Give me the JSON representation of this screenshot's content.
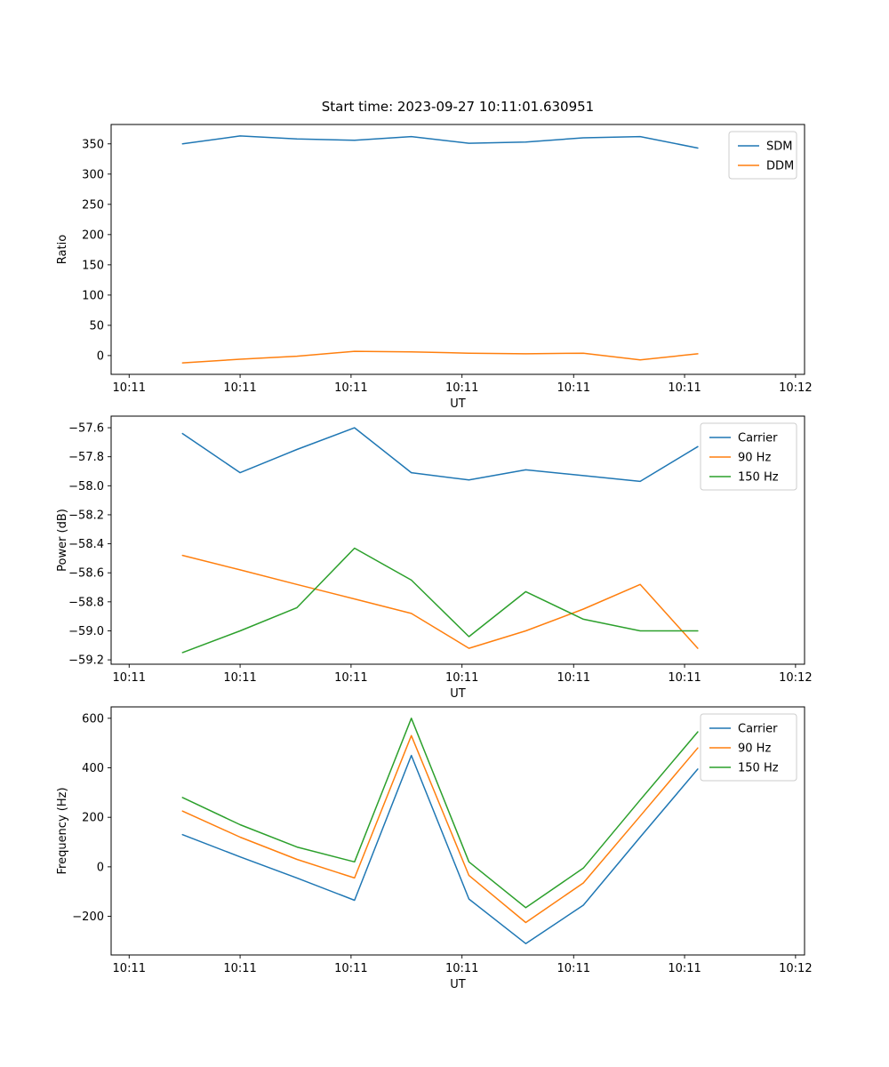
{
  "figure": {
    "background": "#ffffff",
    "frame_color": "#000000",
    "legend_border_color": "#cccccc"
  },
  "chart_data": [
    {
      "type": "line",
      "title": "Start time: 2023-09-27 10:11:01.630951",
      "xlabel": "UT",
      "ylabel": "Ratio",
      "ylim": [
        -31,
        382
      ],
      "yticks": [
        0,
        50,
        100,
        150,
        200,
        250,
        300,
        350
      ],
      "ytick_labels": [
        "0",
        "50",
        "100",
        "150",
        "200",
        "250",
        "300",
        "350"
      ],
      "xticks": {
        "positions": [
          0.026,
          0.186,
          0.346,
          0.506,
          0.667,
          0.827,
          0.987
        ],
        "labels": [
          "10:11",
          "10:11",
          "10:11",
          "10:11",
          "10:11",
          "10:11",
          "10:12"
        ]
      },
      "x": [
        0.103,
        0.186,
        0.268,
        0.351,
        0.433,
        0.516,
        0.598,
        0.681,
        0.763,
        0.846
      ],
      "legend_position": "upper right",
      "grid": false,
      "series": [
        {
          "name": "SDM",
          "color": "#1f77b4",
          "values": [
            350,
            363,
            358,
            356,
            362,
            351,
            353,
            360,
            362,
            343
          ]
        },
        {
          "name": "DDM",
          "color": "#ff7f0e",
          "values": [
            -12,
            -6,
            -1,
            7,
            6,
            4,
            3,
            4,
            -7,
            3
          ]
        }
      ]
    },
    {
      "type": "line",
      "title": "",
      "xlabel": "UT",
      "ylabel": "Power (dB)",
      "ylim": [
        -59.23,
        -57.52
      ],
      "yticks": [
        -59.2,
        -59.0,
        -58.8,
        -58.6,
        -58.4,
        -58.2,
        -58.0,
        -57.8,
        -57.6
      ],
      "ytick_labels": [
        "−59.2",
        "−59.0",
        "−58.8",
        "−58.6",
        "−58.4",
        "−58.2",
        "−58.0",
        "−57.8",
        "−57.6"
      ],
      "xticks": {
        "positions": [
          0.026,
          0.186,
          0.346,
          0.506,
          0.667,
          0.827,
          0.987
        ],
        "labels": [
          "10:11",
          "10:11",
          "10:11",
          "10:11",
          "10:11",
          "10:11",
          "10:12"
        ]
      },
      "x": [
        0.103,
        0.186,
        0.268,
        0.351,
        0.433,
        0.516,
        0.598,
        0.681,
        0.763,
        0.846
      ],
      "legend_position": "upper right",
      "grid": false,
      "series": [
        {
          "name": "Carrier",
          "color": "#1f77b4",
          "values": [
            -57.64,
            -57.91,
            -57.75,
            -57.6,
            -57.91,
            -57.96,
            -57.89,
            -57.93,
            -57.97,
            -57.73
          ]
        },
        {
          "name": "90 Hz",
          "color": "#ff7f0e",
          "values": [
            -58.48,
            -58.58,
            -58.68,
            -58.78,
            -58.88,
            -59.12,
            -59.0,
            -58.85,
            -58.68,
            -59.12
          ]
        },
        {
          "name": "150 Hz",
          "color": "#2ca02c",
          "values": [
            -59.15,
            -59.0,
            -58.84,
            -58.43,
            -58.65,
            -59.04,
            -58.73,
            -58.92,
            -59.0,
            -59.0
          ]
        }
      ]
    },
    {
      "type": "line",
      "title": "",
      "xlabel": "UT",
      "ylabel": "Frequency (Hz)",
      "ylim": [
        -356,
        646
      ],
      "yticks": [
        -200,
        0,
        200,
        400,
        600
      ],
      "ytick_labels": [
        "−200",
        "0",
        "200",
        "400",
        "600"
      ],
      "xticks": {
        "positions": [
          0.026,
          0.186,
          0.346,
          0.506,
          0.667,
          0.827,
          0.987
        ],
        "labels": [
          "10:11",
          "10:11",
          "10:11",
          "10:11",
          "10:11",
          "10:11",
          "10:12"
        ]
      },
      "x": [
        0.103,
        0.186,
        0.268,
        0.351,
        0.433,
        0.516,
        0.598,
        0.681,
        0.763,
        0.846
      ],
      "legend_position": "upper right",
      "grid": false,
      "series": [
        {
          "name": "Carrier",
          "color": "#1f77b4",
          "values": [
            130,
            40,
            -45,
            -135,
            450,
            -130,
            -310,
            -155,
            120,
            395
          ]
        },
        {
          "name": "90 Hz",
          "color": "#ff7f0e",
          "values": [
            225,
            120,
            30,
            -45,
            530,
            -35,
            -225,
            -65,
            205,
            480
          ]
        },
        {
          "name": "150 Hz",
          "color": "#2ca02c",
          "values": [
            280,
            170,
            80,
            20,
            600,
            20,
            -165,
            -5,
            270,
            545
          ]
        }
      ]
    }
  ]
}
